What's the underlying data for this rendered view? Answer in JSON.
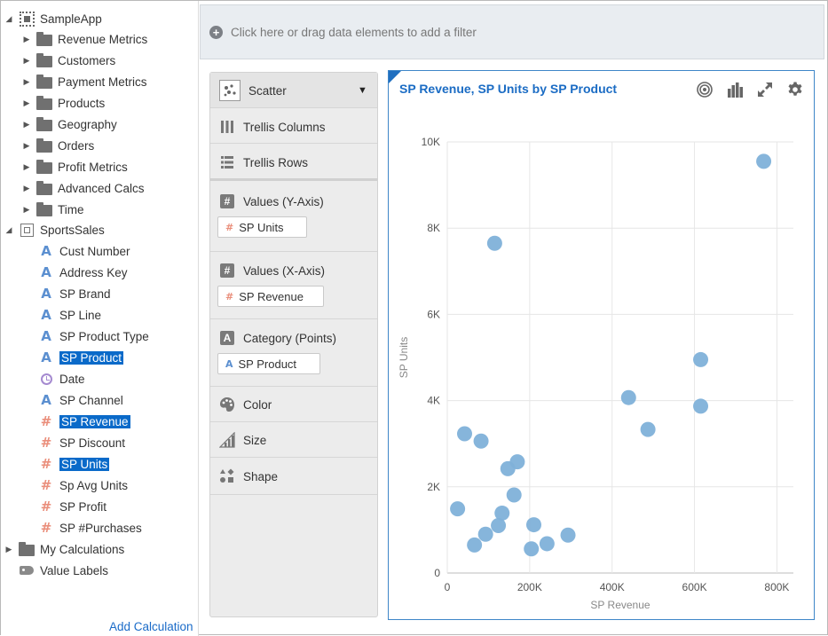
{
  "tree": {
    "root": {
      "label": "SampleApp",
      "icon": "subject-area-icon"
    },
    "folders": [
      {
        "label": "Revenue Metrics"
      },
      {
        "label": "Customers"
      },
      {
        "label": "Payment Metrics"
      },
      {
        "label": "Products"
      },
      {
        "label": "Geography"
      },
      {
        "label": "Orders"
      },
      {
        "label": "Profit Metrics"
      },
      {
        "label": "Advanced Calcs"
      },
      {
        "label": "Time"
      }
    ],
    "dataset": {
      "label": "SportsSales",
      "icon": "dataset-icon"
    },
    "columns": [
      {
        "label": "Cust Number",
        "kind": "attribute",
        "selected": false
      },
      {
        "label": "Address Key",
        "kind": "attribute",
        "selected": false
      },
      {
        "label": "SP Brand",
        "kind": "attribute",
        "selected": false
      },
      {
        "label": "SP Line",
        "kind": "attribute",
        "selected": false
      },
      {
        "label": "SP Product Type",
        "kind": "attribute",
        "selected": false
      },
      {
        "label": "SP Product",
        "kind": "attribute",
        "selected": true
      },
      {
        "label": "Date",
        "kind": "date",
        "selected": false
      },
      {
        "label": "SP Channel",
        "kind": "attribute",
        "selected": false
      },
      {
        "label": "SP Revenue",
        "kind": "measure",
        "selected": true
      },
      {
        "label": "SP Discount",
        "kind": "measure",
        "selected": false
      },
      {
        "label": "SP Units",
        "kind": "measure",
        "selected": true
      },
      {
        "label": "Sp Avg Units",
        "kind": "measure",
        "selected": false
      },
      {
        "label": "SP Profit",
        "kind": "measure",
        "selected": false
      },
      {
        "label": "SP #Purchases",
        "kind": "measure",
        "selected": false
      }
    ],
    "my_calculations": {
      "label": "My Calculations"
    },
    "value_labels": {
      "label": "Value Labels"
    },
    "add_calculation": "Add Calculation"
  },
  "filter_bar": {
    "text": "Click here or drag data elements to add a filter"
  },
  "grammar": {
    "viz_type": "Scatter",
    "trellis_columns": "Trellis Columns",
    "trellis_rows": "Trellis Rows",
    "values_y": {
      "label": "Values (Y-Axis)",
      "item": "SP Units"
    },
    "values_x": {
      "label": "Values (X-Axis)",
      "item": "SP Revenue"
    },
    "category": {
      "label": "Category (Points)",
      "item": "SP Product"
    },
    "color": "Color",
    "size": "Size",
    "shape": "Shape"
  },
  "colors": {
    "accent": "#1b6cc4",
    "point": "#7fb1d9",
    "selection": "#0a6ac9",
    "measure": "#ea8f7c",
    "attribute": "#5b8fd0"
  },
  "chart_data": {
    "type": "scatter",
    "title": "SP Revenue, SP Units by SP Product",
    "xlabel": "SP Revenue",
    "ylabel": "SP Units",
    "xlim": [
      0,
      840000
    ],
    "ylim": [
      0,
      10000
    ],
    "x_ticks": [
      0,
      200000,
      400000,
      600000,
      800000
    ],
    "x_tick_labels": [
      "0",
      "200K",
      "400K",
      "600K",
      "800K"
    ],
    "y_ticks": [
      0,
      2000,
      4000,
      6000,
      8000,
      10000
    ],
    "y_tick_labels": [
      "0",
      "2K",
      "4K",
      "6K",
      "8K",
      "10K"
    ],
    "grid": true,
    "points": [
      {
        "x": 768000,
        "y": 9550
      },
      {
        "x": 115000,
        "y": 7650
      },
      {
        "x": 615000,
        "y": 4950
      },
      {
        "x": 440000,
        "y": 4070
      },
      {
        "x": 615000,
        "y": 3870
      },
      {
        "x": 487000,
        "y": 3330
      },
      {
        "x": 42000,
        "y": 3230
      },
      {
        "x": 82000,
        "y": 3060
      },
      {
        "x": 170000,
        "y": 2580
      },
      {
        "x": 147000,
        "y": 2420
      },
      {
        "x": 162000,
        "y": 1810
      },
      {
        "x": 25000,
        "y": 1490
      },
      {
        "x": 133000,
        "y": 1390
      },
      {
        "x": 210000,
        "y": 1120
      },
      {
        "x": 124000,
        "y": 1100
      },
      {
        "x": 93000,
        "y": 900
      },
      {
        "x": 293000,
        "y": 880
      },
      {
        "x": 242000,
        "y": 680
      },
      {
        "x": 66000,
        "y": 650
      },
      {
        "x": 204000,
        "y": 560
      }
    ]
  }
}
